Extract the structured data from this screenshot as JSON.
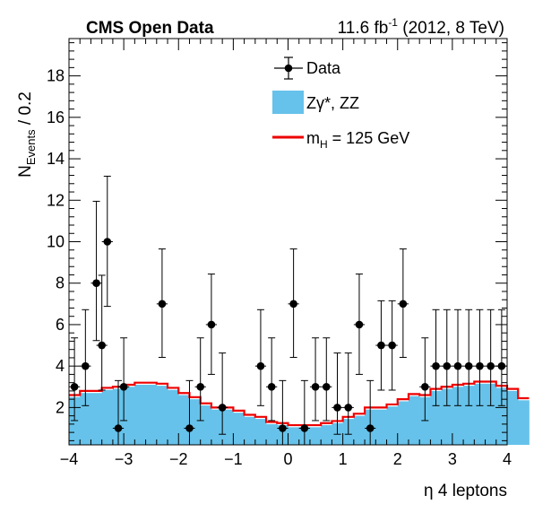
{
  "header": {
    "left": "CMS Open Data",
    "lumi_value": "11.6 fb",
    "lumi_exp": "-1",
    "energy": " (2012, 8 TeV)"
  },
  "axes": {
    "ylabel_main": "N",
    "ylabel_sub": "Events",
    "ylabel_rest": " / 0.2",
    "xlabel": "η 4 leptons"
  },
  "legend": {
    "data": "Data",
    "bkg": "Zγ*, ZZ",
    "signal_main": "m",
    "signal_sub": "H",
    "signal_rest": " = 125 GeV"
  },
  "colors": {
    "background_fill": "#66c2ea",
    "signal_line": "#ee0000",
    "data_marker": "#000000"
  },
  "chart_data": {
    "type": "histogram",
    "title": "CMS Open Data",
    "xlabel": "η 4 leptons",
    "ylabel": "N_Events / 0.2",
    "xlim": [
      -4,
      4
    ],
    "ylim": [
      0.2,
      19.8
    ],
    "x_ticks": [
      -4,
      -3,
      -2,
      -1,
      0,
      1,
      2,
      3,
      4
    ],
    "y_ticks": [
      2,
      4,
      6,
      8,
      10,
      12,
      14,
      16,
      18
    ],
    "bin_width": 0.2,
    "bin_edges_start": -4.0,
    "series": [
      {
        "name": "Zγ*, ZZ",
        "kind": "stacked-fill",
        "values": [
          2.5,
          2.7,
          2.7,
          2.85,
          2.9,
          3.0,
          3.1,
          3.1,
          3.05,
          2.85,
          2.6,
          2.4,
          2.1,
          1.9,
          1.9,
          1.75,
          1.55,
          1.45,
          1.2,
          1.15,
          1.05,
          1.05,
          1.05,
          1.15,
          1.25,
          1.45,
          1.6,
          1.9,
          1.9,
          2.05,
          2.3,
          2.55,
          2.5,
          2.8,
          2.9,
          3.0,
          3.05,
          3.15,
          3.15,
          2.95,
          2.8,
          2.35
        ]
      },
      {
        "name": "m_H = 125 GeV",
        "kind": "step-line",
        "values": [
          2.6,
          2.8,
          2.8,
          2.95,
          3.0,
          3.1,
          3.2,
          3.2,
          3.15,
          2.95,
          2.7,
          2.5,
          2.2,
          2.0,
          2.0,
          1.85,
          1.65,
          1.55,
          1.3,
          1.25,
          1.15,
          1.15,
          1.15,
          1.25,
          1.35,
          1.55,
          1.7,
          2.0,
          2.0,
          2.15,
          2.4,
          2.65,
          2.6,
          2.9,
          3.0,
          3.1,
          3.15,
          3.25,
          3.25,
          3.05,
          2.9,
          2.45
        ]
      },
      {
        "name": "Data",
        "kind": "points",
        "x": [
          -3.9,
          -3.7,
          -3.5,
          -3.4,
          -3.3,
          -3.1,
          -3.0,
          -2.3,
          -1.8,
          -1.6,
          -1.4,
          -1.2,
          -0.5,
          -0.3,
          -0.1,
          0.1,
          0.3,
          0.5,
          0.7,
          0.9,
          1.1,
          1.3,
          1.5,
          1.7,
          1.9,
          2.1,
          2.5,
          2.7,
          2.9,
          3.1,
          3.3,
          3.5,
          3.7,
          3.9
        ],
        "y": [
          3,
          4,
          8,
          5,
          10,
          1,
          3,
          7,
          1,
          3,
          6,
          2,
          4,
          3,
          1,
          7,
          1,
          3,
          3,
          2,
          2,
          6,
          1,
          5,
          5,
          7,
          3,
          4,
          4,
          4,
          4,
          4,
          4,
          4
        ],
        "y_err_up": [
          2.36,
          2.72,
          3.95,
          3.38,
          3.16,
          2.3,
          2.36,
          2.65,
          2.3,
          2.36,
          2.44,
          2.63,
          2.72,
          2.36,
          2.3,
          2.65,
          2.3,
          2.36,
          2.36,
          2.63,
          2.63,
          2.44,
          2.3,
          2.15,
          2.15,
          2.65,
          2.36,
          2.72,
          2.72,
          2.72,
          2.72,
          2.72,
          2.72,
          2.72
        ],
        "y_err_down": [
          1.63,
          1.91,
          2.77,
          2.16,
          3.12,
          0.83,
          1.63,
          2.58,
          0.83,
          1.63,
          2.4,
          1.29,
          1.91,
          1.63,
          0.83,
          2.58,
          0.83,
          1.63,
          1.63,
          1.29,
          1.29,
          2.4,
          0.83,
          2.16,
          2.16,
          2.58,
          1.63,
          1.91,
          1.91,
          1.91,
          1.91,
          1.91,
          1.91,
          1.91
        ],
        "x_err": 0.1
      }
    ]
  }
}
